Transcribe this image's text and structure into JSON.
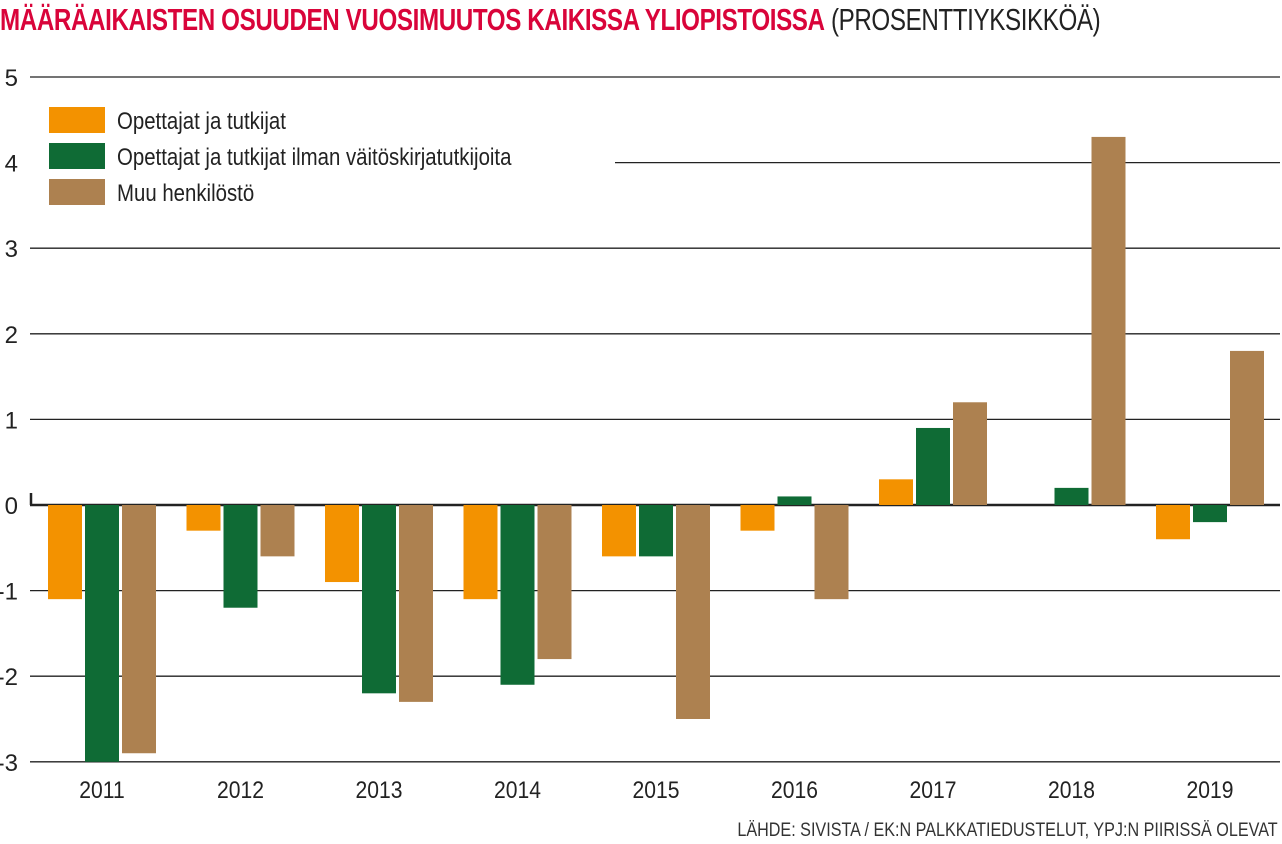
{
  "title": "MÄÄRÄAIKAISTEN OSUUDEN VUOSIMUUTOS KAIKISSA YLIOPISTOISSA",
  "subtitle": "(PROSENTTIYKSIKKÖÄ)",
  "source": "LÄHDE: SIVISTA / EK:N PALKKATIEDUSTELUT, YPJ:N PIIRISSÄ OLEVAT",
  "chart_data": {
    "type": "bar",
    "title": "MÄÄRÄAIKAISTEN OSUUDEN VUOSIMUUTOS KAIKISSA YLIOPISTOISSA (PROSENTTIYKSIKKÖÄ)",
    "xlabel": "",
    "ylabel": "",
    "ylim": [
      -3,
      5
    ],
    "yticks": [
      5,
      4,
      3,
      2,
      1,
      0,
      -1,
      -2,
      -3
    ],
    "grid": true,
    "legend_position": "top-left",
    "categories": [
      "2011",
      "2012",
      "2013",
      "2014",
      "2015",
      "2016",
      "2017",
      "2018",
      "2019"
    ],
    "series": [
      {
        "name": "Opettajat ja tutkijat",
        "color": "#f39200",
        "values": [
          -1.1,
          -0.3,
          -0.9,
          -1.1,
          -0.6,
          -0.3,
          0.3,
          0.0,
          -0.4
        ]
      },
      {
        "name": "Opettajat ja tutkijat ilman väitöskirjatutkijoita",
        "color": "#0f6b35",
        "values": [
          -3.0,
          -1.2,
          -2.2,
          -2.1,
          -0.6,
          0.1,
          0.9,
          0.2,
          -0.2
        ]
      },
      {
        "name": "Muu henkilöstö",
        "color": "#ad8150",
        "values": [
          -2.9,
          -0.6,
          -2.3,
          -1.8,
          -2.5,
          -1.1,
          1.2,
          4.3,
          1.8
        ]
      }
    ]
  }
}
